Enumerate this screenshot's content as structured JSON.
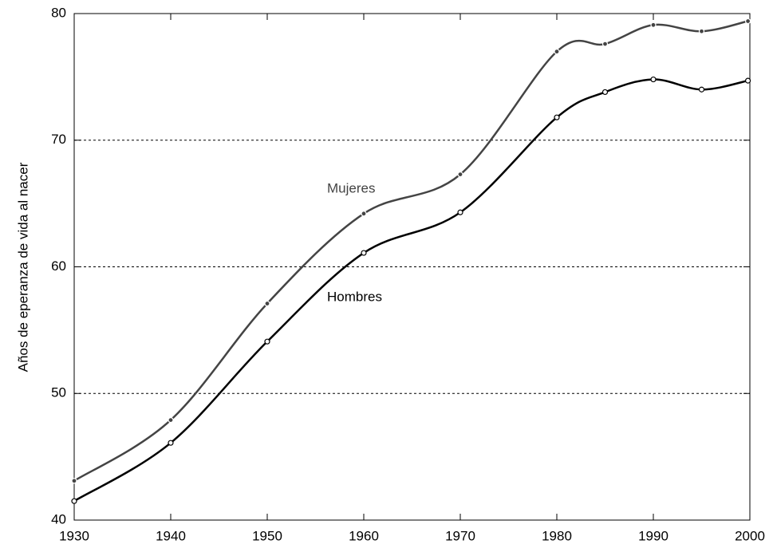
{
  "chart_data": {
    "type": "line",
    "y_label": "Años de eperanza de vida al nacer",
    "x": [
      1930,
      1940,
      1950,
      1960,
      1970,
      1980,
      1985,
      1990,
      1995,
      1999.8
    ],
    "series": [
      {
        "name": "Mujeres",
        "color": "#444444",
        "marker": "filled",
        "values": [
          43.1,
          47.9,
          57.1,
          64.2,
          67.3,
          77.0,
          77.6,
          79.1,
          78.6,
          79.4
        ]
      },
      {
        "name": "Hombres",
        "color": "#000000",
        "marker": "open",
        "values": [
          41.5,
          46.1,
          54.1,
          61.1,
          64.3,
          71.8,
          73.8,
          74.8,
          74.0,
          74.7
        ]
      }
    ],
    "xlim": [
      1930,
      2000
    ],
    "xticks": [
      1930,
      1940,
      1950,
      1960,
      1970,
      1980,
      1990,
      2000
    ],
    "ylim": [
      40,
      80
    ],
    "yticks": [
      40,
      50,
      60,
      70,
      80
    ],
    "grid": true
  }
}
